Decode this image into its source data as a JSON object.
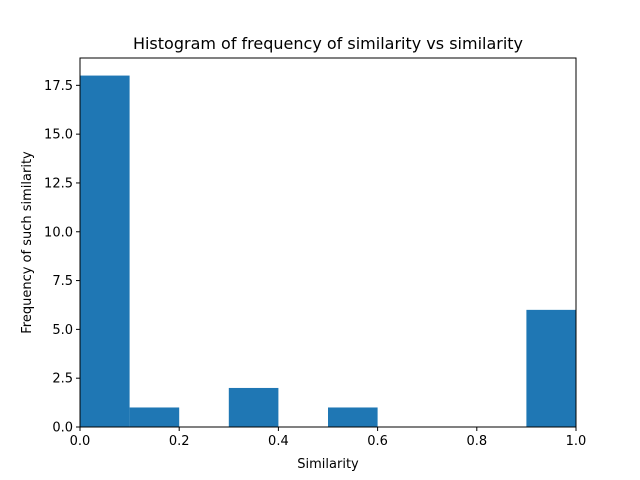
{
  "chart_data": {
    "type": "bar",
    "title": "Histogram of frequency of similarity vs similarity",
    "xlabel": "Similarity",
    "ylabel": "Frequency of such similarity",
    "xlim": [
      0,
      1
    ],
    "ylim": [
      0,
      18.9
    ],
    "bins": [
      {
        "x0": 0.0,
        "x1": 0.1,
        "count": 18
      },
      {
        "x0": 0.1,
        "x1": 0.2,
        "count": 1
      },
      {
        "x0": 0.2,
        "x1": 0.3,
        "count": 0
      },
      {
        "x0": 0.3,
        "x1": 0.4,
        "count": 2
      },
      {
        "x0": 0.4,
        "x1": 0.5,
        "count": 0
      },
      {
        "x0": 0.5,
        "x1": 0.6,
        "count": 1
      },
      {
        "x0": 0.6,
        "x1": 0.7,
        "count": 0
      },
      {
        "x0": 0.7,
        "x1": 0.8,
        "count": 0
      },
      {
        "x0": 0.8,
        "x1": 0.9,
        "count": 0
      },
      {
        "x0": 0.9,
        "x1": 1.0,
        "count": 6
      }
    ],
    "xticks": [
      0.0,
      0.2,
      0.4,
      0.6,
      0.8,
      1.0
    ],
    "xtick_labels": [
      "0.0",
      "0.2",
      "0.4",
      "0.6",
      "0.8",
      "1.0"
    ],
    "yticks": [
      0.0,
      2.5,
      5.0,
      7.5,
      10.0,
      12.5,
      15.0,
      17.5
    ],
    "ytick_labels": [
      "0.0",
      "2.5",
      "5.0",
      "7.5",
      "10.0",
      "12.5",
      "15.0",
      "17.5"
    ],
    "grid": false,
    "bar_color": "#1f77b4"
  }
}
